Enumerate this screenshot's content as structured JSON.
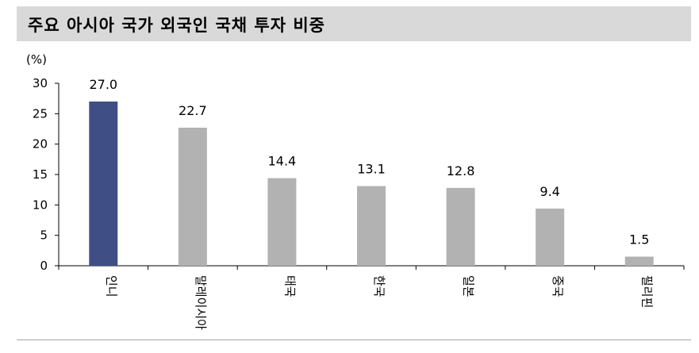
{
  "title": "주요 아시아 국가 외국인 국채 투자 비중",
  "chart_data": {
    "type": "bar",
    "unit_label": "(%)",
    "categories": [
      "인니",
      "말레이시아",
      "태국",
      "한국",
      "일본",
      "중국",
      "필리핀"
    ],
    "values": [
      27.0,
      22.7,
      14.4,
      13.1,
      12.8,
      9.4,
      1.5
    ],
    "data_labels": [
      "27.0",
      "22.7",
      "14.4",
      "13.1",
      "12.8",
      "9.4",
      "1.5"
    ],
    "ylim": [
      0,
      30
    ],
    "yticks": [
      0,
      5,
      10,
      15,
      20,
      25,
      30
    ],
    "highlight_color": "#3f4f86",
    "bar_color": "#b2b2b2",
    "highlight_index": 0,
    "grid": false
  }
}
